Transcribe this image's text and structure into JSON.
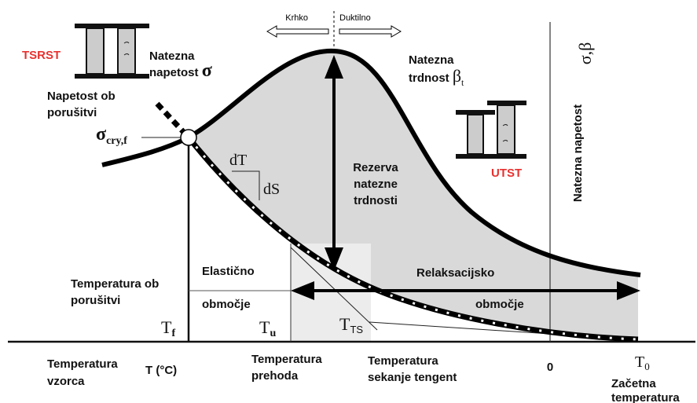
{
  "regime": {
    "brittle": "Krhko",
    "ductile": "Duktilno"
  },
  "tests": {
    "tsrst": "TSRST",
    "utst": "UTST"
  },
  "stress": {
    "lines": [
      "Natezna",
      "napetost"
    ],
    "symbol": "σ"
  },
  "failure_stress": [
    "Napetost ob",
    "porušitvi"
  ],
  "sigma_cry": {
    "symbol": "σ",
    "sub": "cry,f"
  },
  "slope": {
    "dt": "dT",
    "ds": "dS"
  },
  "strength": {
    "lines": [
      "Natezna",
      "trdnost"
    ],
    "symbol": "β",
    "sub": "t"
  },
  "reserve": [
    "Rezerva",
    "natezne",
    "trdnosti"
  ],
  "axis_y": {
    "label": "Natezna napetost",
    "symbol": "σ,β"
  },
  "elastic": [
    "Elastično",
    "območje"
  ],
  "relaxation": [
    "Relaksacijsko",
    "območje"
  ],
  "failure_temp": [
    "Temperatura ob",
    "porušitvi"
  ],
  "temps": {
    "tf": {
      "base": "T",
      "sub": "f"
    },
    "tu": {
      "base": "T",
      "sub": "u"
    },
    "tts": {
      "base": "T",
      "sub": "TS"
    },
    "t0": {
      "base": "T",
      "sub": "0"
    }
  },
  "x_axis": {
    "sample": [
      "Temperatura",
      "vzorca"
    ],
    "label": "T (°C)",
    "transition": [
      "Temperatura",
      "prehoda"
    ],
    "tangent": [
      "Temperatura",
      "sekanje tengent"
    ],
    "zero": "0",
    "initial": [
      "Začetna",
      "temperatura"
    ]
  }
}
